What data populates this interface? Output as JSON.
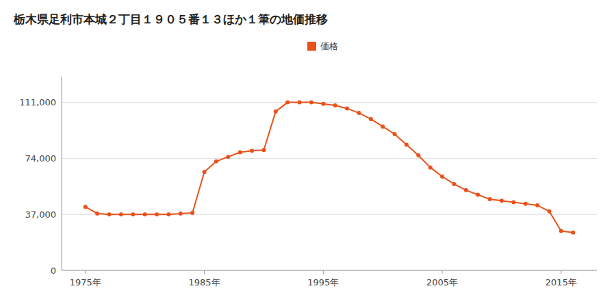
{
  "chart_data": {
    "type": "line",
    "title": "栃木県足利市本城２丁目１９０５番１３ほか１筆の地価推移",
    "x": [
      1975,
      1976,
      1977,
      1978,
      1979,
      1980,
      1981,
      1982,
      1983,
      1984,
      1985,
      1986,
      1987,
      1988,
      1989,
      1990,
      1991,
      1992,
      1993,
      1994,
      1995,
      1996,
      1997,
      1998,
      1999,
      2000,
      2001,
      2002,
      2003,
      2004,
      2005,
      2006,
      2007,
      2008,
      2009,
      2010,
      2011,
      2012,
      2013,
      2014,
      2015,
      2016
    ],
    "series": [
      {
        "name": "価格",
        "color": "#e8521a",
        "marker": "circle",
        "values": [
          42000,
          37500,
          37000,
          37000,
          37000,
          37000,
          37000,
          37000,
          37500,
          38000,
          65000,
          72000,
          75000,
          78000,
          79000,
          79500,
          105000,
          111000,
          111000,
          111000,
          110000,
          109000,
          107000,
          104000,
          100000,
          95000,
          90000,
          83000,
          76000,
          68000,
          62000,
          57000,
          53000,
          50000,
          47000,
          46000,
          45000,
          44000,
          43000,
          39000,
          26000,
          25000
        ]
      }
    ],
    "xlim": [
      1973,
      2018
    ],
    "xticks": [
      {
        "value": 1975,
        "label": "1975年"
      },
      {
        "value": 1985,
        "label": "1985年"
      },
      {
        "value": 1995,
        "label": "1995年"
      },
      {
        "value": 2005,
        "label": "2005年"
      },
      {
        "value": 2015,
        "label": "2015年"
      }
    ],
    "ylim": [
      0,
      128000
    ],
    "yticks": [
      0,
      {
        "value": 37000,
        "label": "37,000"
      },
      {
        "value": 74000,
        "label": "74,000"
      },
      {
        "value": 111000,
        "label": "111,000"
      }
    ],
    "grid": true,
    "legend": "top"
  }
}
